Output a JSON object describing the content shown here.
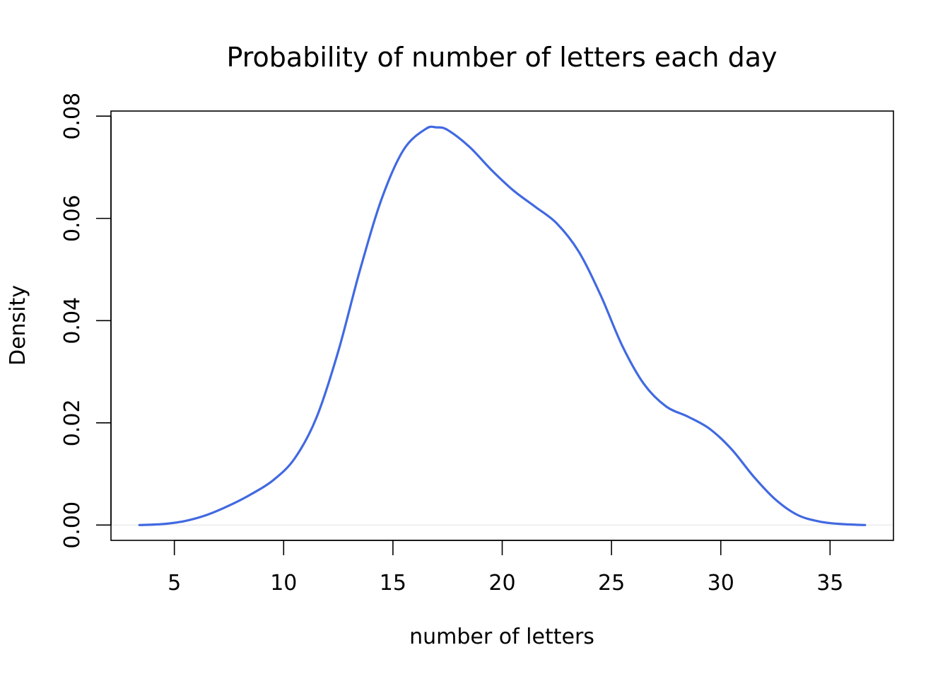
{
  "chart_data": {
    "type": "line",
    "title": "Probability of number of letters each day",
    "xlabel": "number of letters",
    "ylabel": "Density",
    "xlim": [
      2.1,
      37.9
    ],
    "ylim": [
      -0.003,
      0.081
    ],
    "x_ticks": [
      5,
      10,
      15,
      20,
      25,
      30,
      35
    ],
    "x_tick_labels": [
      "5",
      "10",
      "15",
      "20",
      "25",
      "30",
      "35"
    ],
    "y_ticks": [
      0.0,
      0.02,
      0.04,
      0.06,
      0.08
    ],
    "y_tick_labels": [
      "0.00",
      "0.02",
      "0.04",
      "0.06",
      "0.08"
    ],
    "zero_line": true,
    "grid": false,
    "line_color": "#4169E1",
    "zero_line_color": "#e6e6e6",
    "series": [
      {
        "x": [
          3.4,
          4.5,
          5.5,
          6.5,
          7.5,
          8.5,
          9.5,
          10.5,
          11.5,
          12.5,
          13.5,
          14.5,
          15.5,
          16.5,
          17.0,
          17.5,
          18.5,
          19.5,
          20.5,
          21.5,
          22.5,
          23.5,
          24.5,
          25.5,
          26.5,
          27.5,
          28.5,
          29.5,
          30.5,
          31.5,
          32.5,
          33.5,
          34.5,
          35.5,
          36.6
        ],
        "y": [
          0.0,
          0.0002,
          0.0008,
          0.002,
          0.0038,
          0.006,
          0.0087,
          0.013,
          0.021,
          0.034,
          0.05,
          0.064,
          0.0735,
          0.0775,
          0.0778,
          0.0773,
          0.074,
          0.0695,
          0.0655,
          0.0623,
          0.059,
          0.0535,
          0.045,
          0.035,
          0.0275,
          0.0232,
          0.0212,
          0.0188,
          0.0148,
          0.0095,
          0.005,
          0.002,
          0.0007,
          0.0002,
          0.0
        ]
      }
    ]
  }
}
